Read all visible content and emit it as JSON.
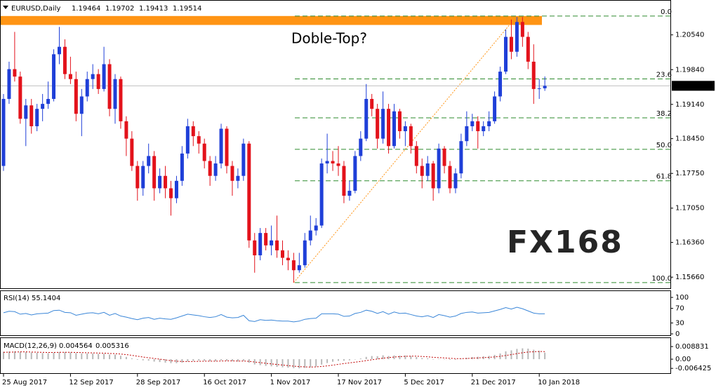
{
  "chart_data": [
    {
      "type": "candlestick",
      "title": "EURUSD,Daily",
      "categories": [
        "25 Aug 2017",
        null,
        null,
        null,
        null,
        null,
        null,
        null,
        null,
        null,
        null,
        null,
        "12 Sep 2017",
        null,
        null,
        null,
        null,
        null,
        null,
        null,
        null,
        null,
        null,
        null,
        "28 Sep 2017",
        null,
        null,
        null,
        null,
        null,
        null,
        null,
        null,
        null,
        null,
        null,
        "16 Oct 2017",
        null,
        null,
        null,
        null,
        null,
        null,
        null,
        null,
        null,
        null,
        null,
        "1 Nov 2017",
        null,
        null,
        null,
        null,
        null,
        null,
        null,
        null,
        null,
        null,
        null,
        "17 Nov 2017",
        null,
        null,
        null,
        null,
        null,
        null,
        null,
        null,
        null,
        null,
        null,
        "5 Dec 2017",
        null,
        null,
        null,
        null,
        null,
        null,
        null,
        null,
        null,
        null,
        null,
        "21 Dec 2017",
        null,
        null,
        null,
        null,
        null,
        null,
        null,
        null,
        null,
        null,
        null,
        "10 Jan 2018",
        null
      ],
      "open": [
        1.179,
        1.1925,
        1.1985,
        1.197,
        1.1885,
        1.1912,
        1.187,
        1.1905,
        1.1915,
        1.1925,
        1.2015,
        1.203,
        1.1975,
        1.1965,
        1.1895,
        1.193,
        1.1965,
        1.1975,
        1.1945,
        1.1995,
        1.1905,
        1.1965,
        1.188,
        1.1845,
        1.179,
        1.1745,
        1.179,
        1.181,
        1.1745,
        1.177,
        1.1745,
        1.1725,
        1.176,
        1.1815,
        1.187,
        1.185,
        1.1835,
        1.18,
        1.177,
        1.1795,
        1.1865,
        1.179,
        1.176,
        1.177,
        1.1835,
        1.164,
        1.161,
        1.1655,
        1.163,
        1.164,
        1.162,
        1.1605,
        1.16,
        1.158,
        1.159,
        1.164,
        1.166,
        1.167,
        1.1795,
        1.18,
        1.1795,
        1.179,
        1.173,
        1.174,
        1.181,
        1.1845,
        1.1925,
        1.1905,
        1.1845,
        1.1905,
        1.183,
        1.19,
        1.186,
        1.187,
        1.183,
        1.179,
        1.177,
        1.1795,
        1.1745,
        1.1825,
        1.179,
        1.1745,
        1.1775,
        1.184,
        1.187,
        1.188,
        1.186,
        1.187,
        1.188,
        1.193,
        1.198,
        1.205,
        1.202,
        1.208,
        1.205,
        1.2,
        1.1945,
        1.19464
      ],
      "high": [
        1.1935,
        1.2,
        1.206,
        1.198,
        1.1925,
        1.1925,
        1.1915,
        1.1935,
        1.196,
        1.2025,
        1.207,
        1.2045,
        1.201,
        1.198,
        1.1945,
        1.198,
        1.1995,
        1.1985,
        1.203,
        1.2005,
        1.1975,
        1.197,
        1.189,
        1.186,
        1.18,
        1.18,
        1.1835,
        1.182,
        1.1785,
        1.179,
        1.176,
        1.177,
        1.183,
        1.1885,
        1.188,
        1.186,
        1.1845,
        1.181,
        1.181,
        1.1875,
        1.187,
        1.18,
        1.1785,
        1.1845,
        1.184,
        1.1655,
        1.1665,
        1.1665,
        1.167,
        1.169,
        1.164,
        1.162,
        1.1615,
        1.1615,
        1.1655,
        1.169,
        1.1685,
        1.1805,
        1.1855,
        1.182,
        1.183,
        1.18,
        1.176,
        1.182,
        1.186,
        1.1955,
        1.1935,
        1.1915,
        1.194,
        1.1915,
        1.1915,
        1.1905,
        1.188,
        1.1875,
        1.184,
        1.1805,
        1.181,
        1.18,
        1.1835,
        1.183,
        1.18,
        1.1785,
        1.1855,
        1.19,
        1.1895,
        1.189,
        1.188,
        1.19,
        1.194,
        1.199,
        1.2065,
        1.2085,
        1.209,
        1.209,
        1.206,
        1.2035,
        1.1965,
        1.19702
      ],
      "low": [
        1.178,
        1.1915,
        1.196,
        1.1875,
        1.183,
        1.1855,
        1.186,
        1.188,
        1.1905,
        1.192,
        1.1995,
        1.1965,
        1.1955,
        1.188,
        1.185,
        1.192,
        1.1945,
        1.1935,
        1.194,
        1.189,
        1.1875,
        1.1865,
        1.181,
        1.178,
        1.172,
        1.173,
        1.1775,
        1.172,
        1.1735,
        1.1725,
        1.169,
        1.1715,
        1.175,
        1.1805,
        1.183,
        1.1815,
        1.1785,
        1.175,
        1.176,
        1.1785,
        1.1775,
        1.173,
        1.1745,
        1.176,
        1.1625,
        1.1575,
        1.16,
        1.162,
        1.161,
        1.1605,
        1.159,
        1.158,
        1.1555,
        1.1575,
        1.1585,
        1.163,
        1.165,
        1.1665,
        1.1775,
        1.178,
        1.177,
        1.1715,
        1.172,
        1.1735,
        1.18,
        1.184,
        1.189,
        1.1825,
        1.1835,
        1.1815,
        1.1825,
        1.1845,
        1.183,
        1.1815,
        1.1775,
        1.1745,
        1.176,
        1.172,
        1.1735,
        1.1775,
        1.1735,
        1.1735,
        1.1765,
        1.183,
        1.186,
        1.1825,
        1.185,
        1.186,
        1.1875,
        1.192,
        1.1975,
        1.2005,
        1.201,
        1.203,
        1.1985,
        1.1915,
        1.1925,
        1.19413
      ],
      "close": [
        1.1925,
        1.1985,
        1.197,
        1.1885,
        1.1912,
        1.187,
        1.1905,
        1.1915,
        1.1925,
        1.2015,
        1.203,
        1.1975,
        1.1965,
        1.1895,
        1.193,
        1.1965,
        1.1975,
        1.1945,
        1.1995,
        1.1905,
        1.1965,
        1.188,
        1.1845,
        1.179,
        1.1745,
        1.179,
        1.181,
        1.1745,
        1.177,
        1.1745,
        1.1725,
        1.176,
        1.1815,
        1.187,
        1.185,
        1.1835,
        1.18,
        1.177,
        1.1795,
        1.1865,
        1.179,
        1.176,
        1.177,
        1.1835,
        1.164,
        1.161,
        1.1655,
        1.163,
        1.164,
        1.162,
        1.1605,
        1.16,
        1.158,
        1.159,
        1.164,
        1.166,
        1.167,
        1.1795,
        1.18,
        1.1795,
        1.179,
        1.173,
        1.174,
        1.181,
        1.1845,
        1.1925,
        1.1905,
        1.1845,
        1.1905,
        1.183,
        1.19,
        1.186,
        1.187,
        1.183,
        1.179,
        1.177,
        1.1795,
        1.1745,
        1.1825,
        1.179,
        1.1745,
        1.1775,
        1.184,
        1.187,
        1.188,
        1.186,
        1.187,
        1.188,
        1.193,
        1.198,
        1.205,
        1.202,
        1.208,
        1.205,
        1.2,
        1.1945,
        1.19464,
        1.19514
      ],
      "up_color": "#1f3fd8",
      "down_color": "#e3121b",
      "ylim": [
        1.1545,
        1.212
      ],
      "yticks": [
        {
          "value": 1.2054,
          "label": "1.20540"
        },
        {
          "value": 1.1984,
          "label": "1.19840"
        },
        {
          "value": 1.1914,
          "label": "1.19140"
        },
        {
          "value": 1.1845,
          "label": "1.18450"
        },
        {
          "value": 1.1775,
          "label": "1.17750"
        },
        {
          "value": 1.1705,
          "label": "1.17050"
        },
        {
          "value": 1.1636,
          "label": "1.16360"
        },
        {
          "value": 1.1566,
          "label": "1.15660"
        }
      ],
      "annotation": "Doble-Top?",
      "zone": [
        1.2074,
        1.2092
      ],
      "zone_color": "#ff9414",
      "fib": {
        "high": 1.2092,
        "low": 1.1555,
        "color": "#2e8b2e",
        "levels": [
          {
            "value": 0,
            "label": "0.0"
          },
          23.6,
          38.2,
          {
            "value": 50,
            "label": "50.0"
          },
          61.8,
          {
            "value": 100,
            "label": "100.0"
          }
        ]
      },
      "watermark": "FX168"
    },
    {
      "type": "line",
      "title": "RSI(14)",
      "color": "#3a86d8",
      "values": [
        58,
        62,
        61,
        54,
        56,
        52,
        55,
        56,
        57,
        64,
        65,
        59,
        58,
        51,
        54,
        57,
        58,
        55,
        59,
        51,
        56,
        49,
        46,
        42,
        39,
        43,
        45,
        40,
        43,
        41,
        40,
        44,
        49,
        54,
        52,
        50,
        47,
        45,
        47,
        53,
        46,
        44,
        45,
        51,
        36,
        34,
        39,
        37,
        38,
        36,
        35,
        35,
        33,
        35,
        40,
        42,
        43,
        55,
        55,
        55,
        54,
        48,
        49,
        56,
        59,
        65,
        62,
        56,
        61,
        54,
        60,
        56,
        57,
        53,
        49,
        47,
        50,
        45,
        53,
        50,
        46,
        49,
        56,
        59,
        60,
        57,
        58,
        59,
        63,
        67,
        72,
        68,
        73,
        69,
        63,
        57,
        55,
        55.1404
      ],
      "ylim": [
        0,
        100
      ],
      "yticks": [
        100,
        70,
        30,
        0
      ]
    },
    {
      "type": "macd",
      "title": "MACD(12,26,9)",
      "color": "#b8b8b8",
      "signal_color": "#c00000",
      "values": [
        0.0052,
        0.0054,
        0.0055,
        0.0052,
        0.005,
        0.0047,
        0.0045,
        0.0043,
        0.0042,
        0.0046,
        0.005,
        0.005,
        0.0048,
        0.0043,
        0.004,
        0.004,
        0.004,
        0.0037,
        0.0038,
        0.0032,
        0.0032,
        0.0024,
        0.0016,
        0.0006,
        -0.0004,
        -0.0008,
        -0.001,
        -0.0017,
        -0.002,
        -0.0024,
        -0.0028,
        -0.0028,
        -0.0024,
        -0.0016,
        -0.0012,
        -0.001,
        -0.0011,
        -0.0014,
        -0.0014,
        -0.0008,
        -0.001,
        -0.0014,
        -0.0016,
        -0.0012,
        -0.0025,
        -0.0037,
        -0.0042,
        -0.0047,
        -0.005,
        -0.0054,
        -0.0057,
        -0.006,
        -0.0063,
        -0.0064,
        -0.0061,
        -0.0057,
        -0.0052,
        -0.0038,
        -0.0027,
        -0.0018,
        -0.0012,
        -0.0011,
        -0.0008,
        -0.0002,
        0.0005,
        0.0016,
        0.0022,
        0.0021,
        0.0027,
        0.0022,
        0.0026,
        0.0025,
        0.0026,
        0.0022,
        0.0015,
        0.0008,
        0.0006,
        -0.0001,
        0.0002,
        0.0001,
        -0.0004,
        -0.0004,
        0.0002,
        0.0009,
        0.0015,
        0.0017,
        0.002,
        0.0023,
        0.003,
        0.004,
        0.0055,
        0.0062,
        0.0072,
        0.0076,
        0.0074,
        0.0066,
        0.0059,
        0.004564
      ],
      "signal": [
        0.0048,
        0.0049,
        0.005,
        0.0051,
        0.0051,
        0.005,
        0.0049,
        0.0048,
        0.0047,
        0.0047,
        0.0048,
        0.0048,
        0.0048,
        0.0047,
        0.0046,
        0.0045,
        0.0044,
        0.0043,
        0.0042,
        0.004,
        0.0039,
        0.0036,
        0.0032,
        0.0027,
        0.0021,
        0.0015,
        0.001,
        0.0005,
        0,
        -0.0005,
        -0.001,
        -0.0014,
        -0.0016,
        -0.0016,
        -0.0016,
        -0.0015,
        -0.0014,
        -0.0014,
        -0.0014,
        -0.0013,
        -0.0012,
        -0.0012,
        -0.0013,
        -0.0013,
        -0.0015,
        -0.002,
        -0.0024,
        -0.0029,
        -0.0033,
        -0.0037,
        -0.0041,
        -0.0045,
        -0.0049,
        -0.0052,
        -0.0054,
        -0.0055,
        -0.0054,
        -0.0051,
        -0.0047,
        -0.0042,
        -0.0036,
        -0.0031,
        -0.0026,
        -0.0021,
        -0.0016,
        -0.001,
        -0.0004,
        0.0001,
        0.0007,
        0.0011,
        0.0015,
        0.0018,
        0.002,
        0.0021,
        0.0021,
        0.0019,
        0.0017,
        0.0013,
        0.0011,
        0.0009,
        0.0006,
        0.0004,
        0.0004,
        0.0005,
        0.0007,
        0.0009,
        0.0011,
        0.0013,
        0.0016,
        0.002,
        0.0026,
        0.0032,
        0.0039,
        0.0045,
        0.005,
        0.0052,
        0.0054,
        0.005316
      ],
      "ylim": [
        -0.0093,
        0.0128
      ],
      "yticks": [
        0.008831,
        {
          "value": 0,
          "label": "0.00"
        },
        -0.006425
      ]
    }
  ]
}
